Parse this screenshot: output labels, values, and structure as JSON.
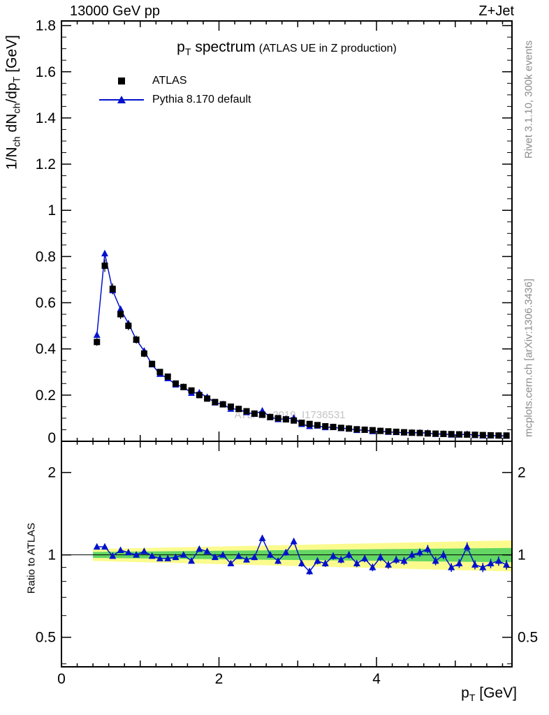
{
  "header": {
    "beam_energy": "13000 GeV pp",
    "process_tag": "Z+Jet"
  },
  "titles": {
    "main_pre": "p",
    "main_sub": "T",
    "main_post": " spectrum",
    "main_paren": "(ATLAS UE in Z production)",
    "watermark": "ATLAS_2019_I1736531",
    "right_top": "Rivet 3.1.10,  300k events",
    "right_bottom": "mcplots.cern.ch [arXiv:1306.3436]"
  },
  "ylabel": {
    "p1": "1/N",
    "s1": "ch",
    "p2": " dN",
    "s2": "ch",
    "p3": "/dp",
    "s3": "T",
    "p4": " [GeV]"
  },
  "xlabel": {
    "p": "p",
    "s": "T",
    "post": " [GeV]"
  },
  "ratio_label": "Ratio to ATLAS",
  "legend": [
    {
      "label": "ATLAS",
      "marker": "black-square"
    },
    {
      "label": "Pythia 8.170 default",
      "marker": "blue-triangle-line"
    }
  ],
  "chart_data": {
    "type": "line",
    "title": "pT spectrum (ATLAS UE in Z production)",
    "xlabel": "pT [GeV]",
    "ylabel": "1/Nch dNch/dpT [GeV]",
    "legend_position": "top-left",
    "grid": false,
    "x": [
      0.45,
      0.55,
      0.65,
      0.75,
      0.85,
      0.95,
      1.05,
      1.15,
      1.25,
      1.35,
      1.45,
      1.55,
      1.65,
      1.75,
      1.85,
      1.95,
      2.05,
      2.15,
      2.25,
      2.35,
      2.45,
      2.55,
      2.65,
      2.75,
      2.85,
      2.95,
      3.05,
      3.15,
      3.25,
      3.35,
      3.45,
      3.55,
      3.65,
      3.75,
      3.85,
      3.95,
      4.05,
      4.15,
      4.25,
      4.35,
      4.45,
      4.55,
      4.65,
      4.75,
      4.85,
      4.95,
      5.05,
      5.15,
      5.25,
      5.35,
      5.45,
      5.55,
      5.65
    ],
    "series": [
      {
        "name": "ATLAS",
        "marker": "square",
        "color": "#000000",
        "values": [
          0.43,
          0.76,
          0.66,
          0.55,
          0.5,
          0.44,
          0.38,
          0.335,
          0.3,
          0.28,
          0.25,
          0.235,
          0.22,
          0.2,
          0.185,
          0.17,
          0.16,
          0.15,
          0.14,
          0.13,
          0.12,
          0.115,
          0.105,
          0.1,
          0.095,
          0.09,
          0.08,
          0.075,
          0.07,
          0.065,
          0.062,
          0.058,
          0.055,
          0.052,
          0.05,
          0.048,
          0.045,
          0.043,
          0.041,
          0.039,
          0.037,
          0.036,
          0.034,
          0.033,
          0.032,
          0.031,
          0.03,
          0.029,
          0.028,
          0.027,
          0.026,
          0.025,
          0.025
        ]
      },
      {
        "name": "Pythia 8.170 default",
        "marker": "triangle",
        "color": "#0011cc",
        "values": [
          0.46,
          0.813,
          0.653,
          0.572,
          0.51,
          0.44,
          0.391,
          0.332,
          0.291,
          0.272,
          0.245,
          0.235,
          0.209,
          0.21,
          0.191,
          0.167,
          0.16,
          0.14,
          0.139,
          0.125,
          0.118,
          0.132,
          0.105,
          0.095,
          0.097,
          0.101,
          0.074,
          0.065,
          0.067,
          0.06,
          0.061,
          0.056,
          0.055,
          0.048,
          0.049,
          0.043,
          0.044,
          0.04,
          0.039,
          0.037,
          0.037,
          0.037,
          0.036,
          0.031,
          0.032,
          0.028,
          0.028,
          0.031,
          0.026,
          0.024,
          0.024,
          0.024,
          0.023
        ]
      }
    ],
    "ratio": {
      "name": "Ratio to ATLAS",
      "values": [
        1.07,
        1.07,
        0.99,
        1.04,
        1.02,
        1.0,
        1.03,
        0.99,
        0.97,
        0.97,
        0.98,
        1.0,
        0.95,
        1.05,
        1.03,
        0.98,
        1.0,
        0.93,
        0.99,
        0.96,
        0.98,
        1.15,
        1.0,
        0.95,
        1.02,
        1.12,
        0.93,
        0.87,
        0.95,
        0.93,
        0.99,
        0.96,
        1.0,
        0.93,
        0.97,
        0.9,
        0.98,
        0.92,
        0.96,
        0.95,
        1.0,
        1.02,
        1.05,
        0.95,
        1.0,
        0.9,
        0.93,
        1.07,
        0.92,
        0.9,
        0.93,
        0.95,
        0.92
      ],
      "bands": {
        "x": [
          0.4,
          5.72
        ],
        "yellow_lo": [
          0.95,
          0.87
        ],
        "yellow_hi": [
          1.05,
          1.13
        ],
        "green_lo": [
          0.975,
          0.94
        ],
        "green_hi": [
          1.025,
          1.06
        ]
      }
    },
    "axes": {
      "x": {
        "min": 0,
        "max": 5.72,
        "major": [
          0,
          2,
          4
        ],
        "major_labels": [
          "0",
          "2",
          "4"
        ],
        "minor_step": 0.2
      },
      "y_main": {
        "min": 0,
        "max": 1.82,
        "major": [
          0,
          0.2,
          0.4,
          0.6,
          0.8,
          1,
          1.2,
          1.4,
          1.6,
          1.8
        ],
        "major_labels": [
          "0",
          "0.2",
          "0.4",
          "0.6",
          "0.8",
          "1",
          "1.2",
          "1.4",
          "1.6",
          "1.8"
        ],
        "minor_step": 0.05
      },
      "y_ratio": {
        "scale": "log",
        "min": 0.39,
        "max": 2.6,
        "major": [
          0.5,
          1,
          2
        ],
        "major_labels": [
          "0.5",
          "1",
          "2"
        ],
        "minor": [
          0.4,
          0.6,
          0.7,
          0.8,
          0.9
        ]
      }
    },
    "colors": {
      "atlas": "#000000",
      "pythia": "#0011cc",
      "band_yellow": "#fbfb8d",
      "band_green": "#63d663",
      "frame": "#000000",
      "watermark": "#c4c4c4",
      "side_note": "#8c8c8c"
    }
  }
}
